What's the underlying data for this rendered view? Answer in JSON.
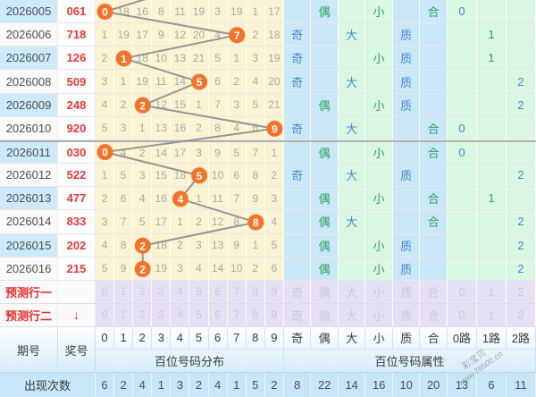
{
  "chart_data": {
    "type": "table",
    "title": "百位走势图 (hundreds-digit trend chart)",
    "columns": [
      "期号",
      "奖号",
      "0",
      "1",
      "2",
      "3",
      "4",
      "5",
      "6",
      "7",
      "8",
      "9",
      "奇",
      "偶",
      "大",
      "小",
      "质",
      "合",
      "0路",
      "1路",
      "2路"
    ],
    "trend_series": {
      "name": "百位开奖号码",
      "periods": [
        "2026005",
        "2026006",
        "2026007",
        "2026008",
        "2026009",
        "2026010",
        "2026011",
        "2026012",
        "2026013",
        "2026014",
        "2026015",
        "2026016"
      ],
      "values": [
        0,
        7,
        1,
        5,
        2,
        9,
        0,
        5,
        4,
        8,
        2,
        2
      ]
    },
    "occurrence_counts": {
      "digits": [
        6,
        2,
        4,
        1,
        3,
        2,
        4,
        1,
        5,
        2
      ],
      "attrs": [
        8,
        22,
        14,
        16,
        10,
        20
      ],
      "roads": [
        13,
        6,
        11
      ]
    }
  },
  "labels": {
    "period": "期号",
    "number": "奖号",
    "group_digits": "百位号码分布",
    "group_attrs": "百位号码属性",
    "counts": "出现次数"
  },
  "digit_headers": [
    "0",
    "1",
    "2",
    "3",
    "4",
    "5",
    "6",
    "7",
    "8",
    "9"
  ],
  "attr_headers": [
    "奇",
    "偶",
    "大",
    "小",
    "质",
    "合"
  ],
  "road_headers": [
    "0路",
    "1路",
    "2路"
  ],
  "rows": [
    {
      "period": "2026005",
      "number": "061",
      "hit": 0,
      "misses": [
        "",
        18,
        16,
        8,
        11,
        19,
        3,
        19,
        1,
        17
      ],
      "parity": "偶",
      "size": "小",
      "prime": "合",
      "road": 0
    },
    {
      "period": "2026006",
      "number": "718",
      "hit": 7,
      "misses": [
        1,
        19,
        17,
        9,
        12,
        20,
        4,
        "",
        2,
        18
      ],
      "parity": "奇",
      "size": "大",
      "prime": "质",
      "road": 1
    },
    {
      "period": "2026007",
      "number": "126",
      "hit": 1,
      "misses": [
        2,
        "",
        18,
        10,
        13,
        21,
        5,
        1,
        3,
        19
      ],
      "parity": "奇",
      "size": "小",
      "prime": "质",
      "road": 1
    },
    {
      "period": "2026008",
      "number": "509",
      "hit": 5,
      "misses": [
        3,
        1,
        19,
        11,
        14,
        "",
        6,
        2,
        4,
        20
      ],
      "parity": "奇",
      "size": "大",
      "prime": "质",
      "road": 2
    },
    {
      "period": "2026009",
      "number": "248",
      "hit": 2,
      "misses": [
        4,
        2,
        "",
        12,
        15,
        1,
        7,
        3,
        5,
        21
      ],
      "parity": "偶",
      "size": "小",
      "prime": "质",
      "road": 2
    },
    {
      "period": "2026010",
      "number": "920",
      "hit": 9,
      "misses": [
        5,
        3,
        1,
        13,
        16,
        2,
        8,
        4,
        6,
        ""
      ],
      "parity": "奇",
      "size": "大",
      "prime": "合",
      "road": 0
    },
    {
      "period": "2026011",
      "number": "030",
      "hit": 0,
      "misses": [
        "",
        4,
        2,
        14,
        17,
        3,
        9,
        5,
        7,
        1
      ],
      "parity": "偶",
      "size": "小",
      "prime": "合",
      "road": 0
    },
    {
      "period": "2026012",
      "number": "522",
      "hit": 5,
      "misses": [
        1,
        5,
        3,
        15,
        18,
        "",
        10,
        6,
        8,
        2
      ],
      "parity": "奇",
      "size": "大",
      "prime": "质",
      "road": 2
    },
    {
      "period": "2026013",
      "number": "477",
      "hit": 4,
      "misses": [
        2,
        6,
        4,
        16,
        "",
        1,
        11,
        7,
        9,
        3
      ],
      "parity": "偶",
      "size": "小",
      "prime": "合",
      "road": 1
    },
    {
      "period": "2026014",
      "number": "833",
      "hit": 8,
      "misses": [
        3,
        7,
        5,
        17,
        1,
        2,
        12,
        8,
        "",
        4
      ],
      "parity": "偶",
      "size": "大",
      "prime": "合",
      "road": 2
    },
    {
      "period": "2026015",
      "number": "202",
      "hit": 2,
      "misses": [
        4,
        8,
        "",
        18,
        2,
        3,
        13,
        9,
        1,
        5
      ],
      "parity": "偶",
      "size": "小",
      "prime": "质",
      "road": 2
    },
    {
      "period": "2026016",
      "number": "215",
      "hit": 2,
      "misses": [
        5,
        9,
        "",
        19,
        3,
        4,
        14,
        10,
        2,
        6
      ],
      "parity": "偶",
      "size": "小",
      "prime": "质",
      "road": 2
    }
  ],
  "predictions": [
    {
      "label": "预测行一",
      "arrow": ""
    },
    {
      "label": "预测行二",
      "arrow": "↓"
    }
  ],
  "ghost": {
    "digits": [
      "0",
      "1",
      "2",
      "3",
      "4",
      "5",
      "6",
      "7",
      "8",
      "9"
    ],
    "attrs": [
      "奇",
      "偶",
      "大",
      "小",
      "质",
      "合"
    ],
    "roads": [
      "0",
      "1",
      "2"
    ]
  },
  "counts": {
    "digits": [
      6,
      2,
      4,
      1,
      3,
      2,
      4,
      1,
      5,
      2
    ],
    "attrs": [
      8,
      22,
      14,
      16,
      10,
      20
    ],
    "roads": [
      13,
      6,
      11
    ]
  },
  "watermark": {
    "brand": "彩宝贝",
    "url": "www.78500.cn"
  },
  "colors": {
    "hit_circle": "#f5722b",
    "trend_line": "#959595",
    "blue_text": "#4489cf",
    "green_text": "#2ba05e",
    "red_number": "#e53935",
    "yellow_cell": "#fbf3d2",
    "blue_cell": "#cbe8f9",
    "green_cell": "#d9f7e1",
    "lavender_cell": "#e5e0f3"
  }
}
